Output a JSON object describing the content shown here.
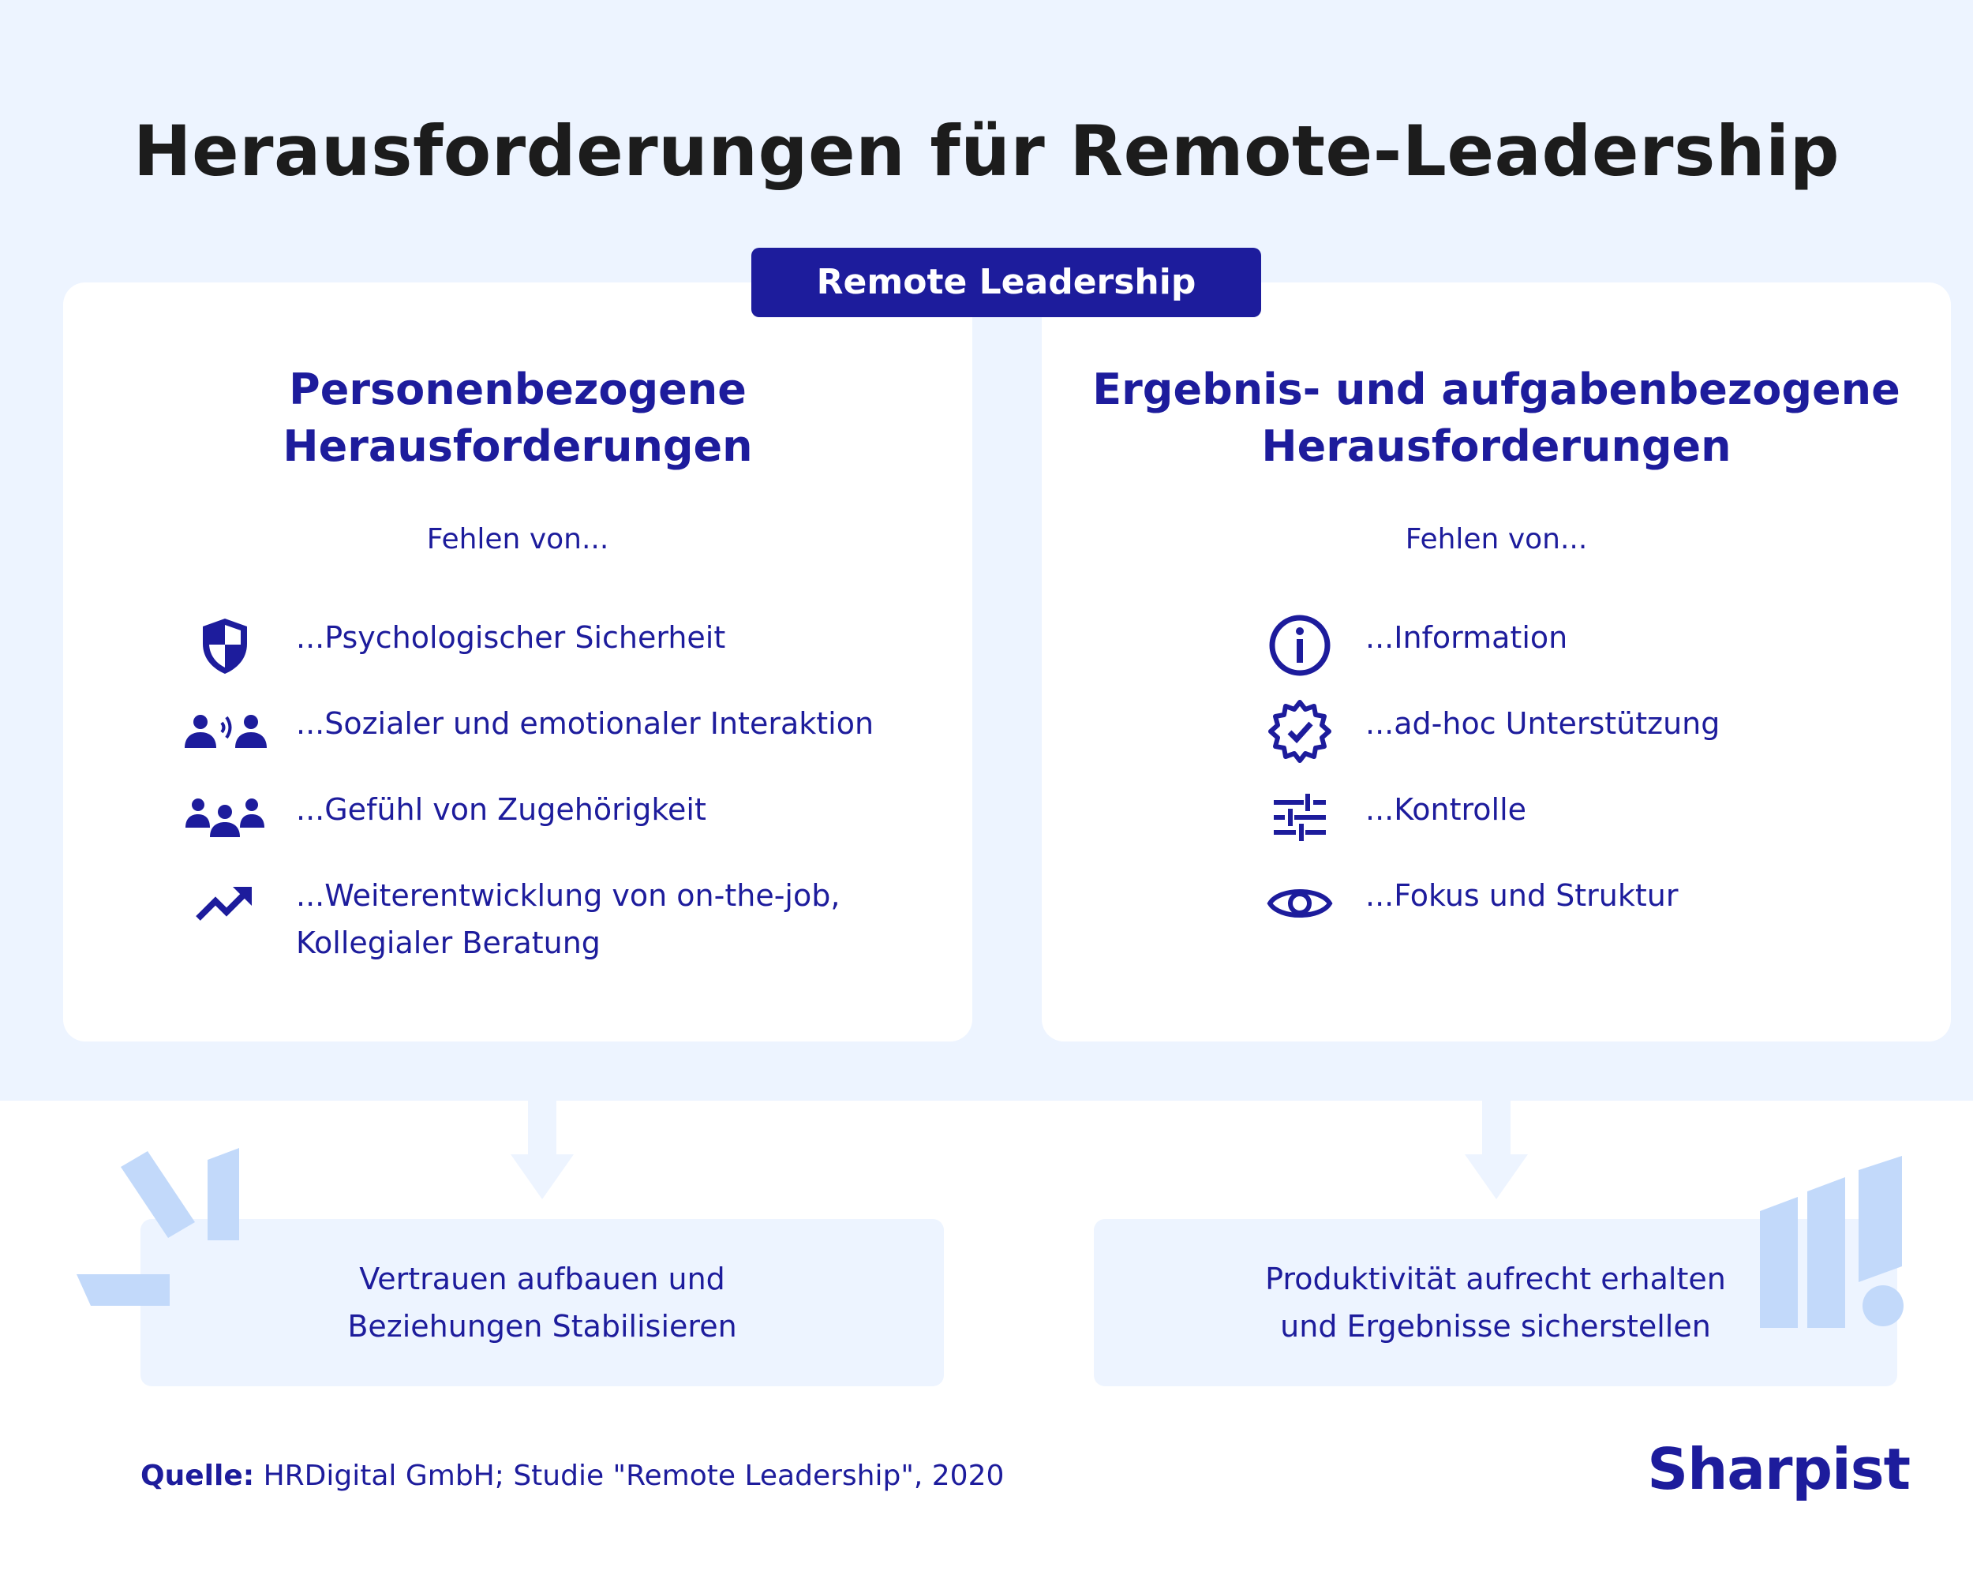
{
  "title": "Herausforderungen für Remote-Leadership",
  "pill_label": "Remote Leadership",
  "left_card": {
    "heading_line1": "Personenbezogene",
    "heading_line2": "Herausforderungen",
    "subtitle": "Fehlen von...",
    "items": [
      {
        "icon": "shield-icon",
        "text_line1": "...Psychologischer Sicherheit"
      },
      {
        "icon": "people-talking-icon",
        "text_line1": "...Sozialer und emotionaler Interaktion"
      },
      {
        "icon": "group-icon",
        "text_line1": "...Gefühl von Zugehörigkeit"
      },
      {
        "icon": "trending-up-icon",
        "text_line1": "...Weiterentwicklung von on-the-job,",
        "text_line2": "Kollegialer Beratung"
      }
    ]
  },
  "right_card": {
    "heading_line1": "Ergebnis- und aufgabenbezogene",
    "heading_line2": "Herausforderungen",
    "subtitle": "Fehlen von...",
    "items": [
      {
        "icon": "info-icon",
        "text_line1": "...Information"
      },
      {
        "icon": "gear-check-icon",
        "text_line1": "...ad-hoc Unterstützung"
      },
      {
        "icon": "sliders-icon",
        "text_line1": "...Kontrolle"
      },
      {
        "icon": "eye-icon",
        "text_line1": "...Fokus und Struktur"
      }
    ]
  },
  "results": {
    "left_line1": "Vertrauen aufbauen und",
    "left_line2": "Beziehungen Stabilisieren",
    "right_line1": "Produktivität aufrecht erhalten",
    "right_line2": "und Ergebnisse sicherstellen"
  },
  "source": {
    "label": "Quelle:",
    "text": " HRDigital GmbH; Studie \"Remote Leadership\", 2020"
  },
  "logo": "Sharpist",
  "colors": {
    "accent": "#1d1c9c",
    "background_light": "#edf4ff",
    "decoration": "#c2d9fa"
  }
}
